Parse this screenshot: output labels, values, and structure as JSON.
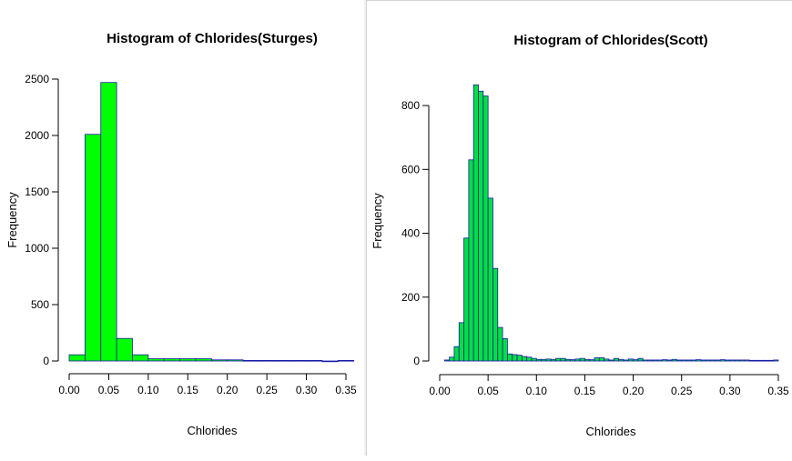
{
  "chart_data": [
    {
      "type": "bar",
      "title": "Histogram of Chlorides(Sturges)",
      "xlabel": "Chlorides",
      "ylabel": "Frequency",
      "xlim": [
        0.0,
        0.35
      ],
      "ylim": [
        0,
        2500
      ],
      "xticks": [
        "0.00",
        "0.05",
        "0.10",
        "0.15",
        "0.20",
        "0.25",
        "0.30",
        "0.35"
      ],
      "yticks": [
        "0",
        "500",
        "1000",
        "1500",
        "2000",
        "2500"
      ],
      "bin_edges": [
        0.0,
        0.02,
        0.04,
        0.06,
        0.08,
        0.1,
        0.12,
        0.14,
        0.16,
        0.18,
        0.2,
        0.22,
        0.24,
        0.26,
        0.28,
        0.3,
        0.32,
        0.34,
        0.36
      ],
      "values": [
        55,
        2010,
        2470,
        200,
        55,
        20,
        20,
        20,
        20,
        10,
        10,
        5,
        5,
        5,
        5,
        5,
        0,
        5
      ],
      "colors": {
        "fill": "#00ff00",
        "border": "#1a1aa8"
      }
    },
    {
      "type": "bar",
      "title": "Histogram of Chlorides(Scott)",
      "xlabel": "Chlorides",
      "ylabel": "Frequency",
      "xlim": [
        0.0,
        0.35
      ],
      "ylim": [
        0,
        880
      ],
      "xticks": [
        "0.00",
        "0.05",
        "0.10",
        "0.15",
        "0.20",
        "0.25",
        "0.30",
        "0.35"
      ],
      "yticks": [
        "0",
        "200",
        "400",
        "600",
        "800"
      ],
      "bin_start": 0.005,
      "bin_width": 0.005,
      "values": [
        3,
        12,
        45,
        120,
        385,
        630,
        865,
        845,
        830,
        510,
        290,
        105,
        70,
        22,
        20,
        18,
        14,
        12,
        8,
        5,
        5,
        6,
        5,
        8,
        8,
        5,
        4,
        6,
        8,
        5,
        4,
        10,
        10,
        6,
        3,
        8,
        5,
        3,
        6,
        4,
        8,
        3,
        3,
        3,
        3,
        4,
        3,
        5,
        3,
        3,
        3,
        3,
        4,
        3,
        3,
        3,
        3,
        4,
        3,
        3,
        3,
        3,
        3,
        2,
        2,
        2,
        2,
        2,
        3
      ],
      "colors": {
        "fill": "#00e040",
        "border": "#1a1aa8"
      }
    }
  ]
}
